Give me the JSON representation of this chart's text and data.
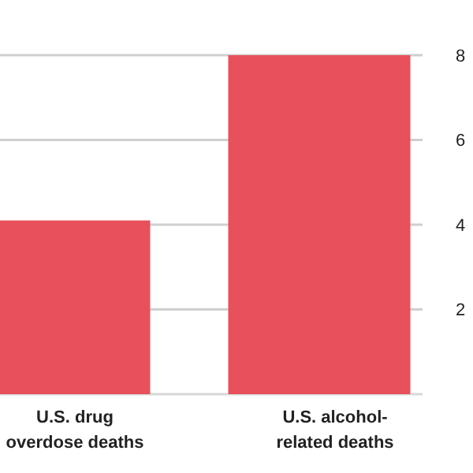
{
  "chart_data": {
    "type": "bar",
    "categories": [
      "U.S. drug\noverdose deaths",
      "U.S. alcohol-\nrelated deaths"
    ],
    "values": [
      4.1,
      8
    ],
    "color": "#e8505b",
    "ylim": [
      0,
      8
    ],
    "yticks": [
      2,
      4,
      6,
      8
    ],
    "grid": "y"
  }
}
